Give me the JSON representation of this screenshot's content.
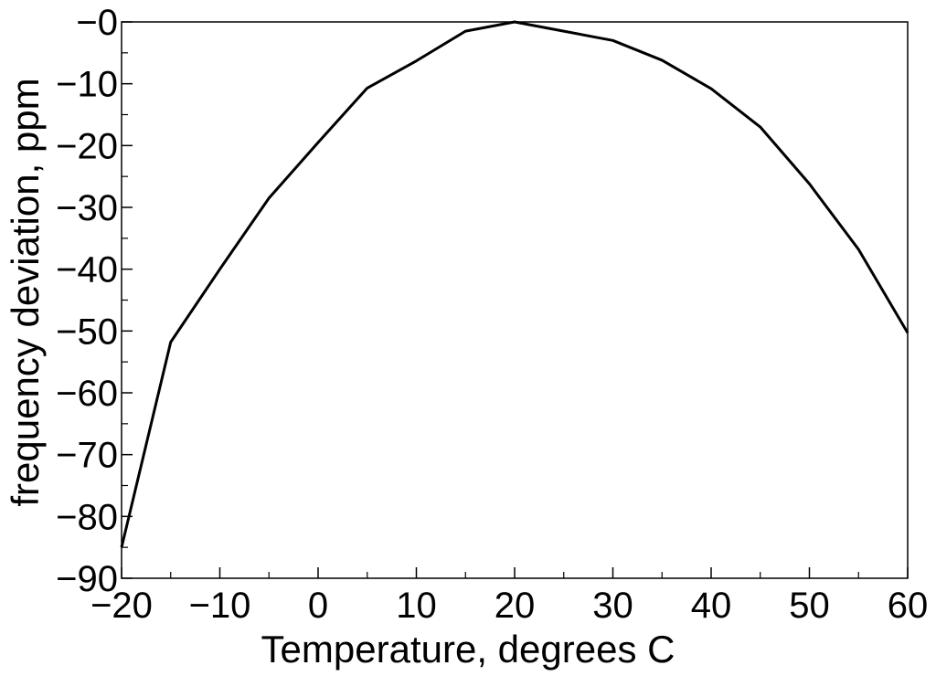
{
  "chart_data": {
    "type": "line",
    "title": "",
    "xlabel": "Temperature, degrees C",
    "ylabel": "frequency deviation, ppm",
    "xlim": [
      -20,
      60
    ],
    "ylim": [
      -90,
      0
    ],
    "x_ticks": [
      -20,
      -10,
      0,
      10,
      20,
      30,
      40,
      50,
      60
    ],
    "x_tick_labels": [
      "−20",
      "−10",
      "0",
      "10",
      "20",
      "30",
      "40",
      "50",
      "60"
    ],
    "y_ticks": [
      0,
      -10,
      -20,
      -30,
      -40,
      -50,
      -60,
      -70,
      -80,
      -90
    ],
    "y_tick_labels": [
      "−0",
      "−10",
      "−20",
      "−30",
      "−40",
      "−50",
      "−60",
      "−70",
      "−80",
      "−90"
    ],
    "grid": false,
    "series": [
      {
        "x": [
          -20,
          -15,
          -10,
          -5,
          0,
          5,
          10,
          15,
          20,
          25,
          30,
          35,
          40,
          45,
          50,
          55,
          60
        ],
        "y": [
          -85,
          -51.8,
          -40,
          -28.5,
          -19.5,
          -10.7,
          -6.3,
          -1.5,
          0,
          -1.5,
          -3,
          -6.2,
          -10.8,
          -17,
          -26.2,
          -36.8,
          -50.3
        ]
      }
    ],
    "colors": {
      "line": "#000000",
      "axes": "#000000"
    }
  }
}
